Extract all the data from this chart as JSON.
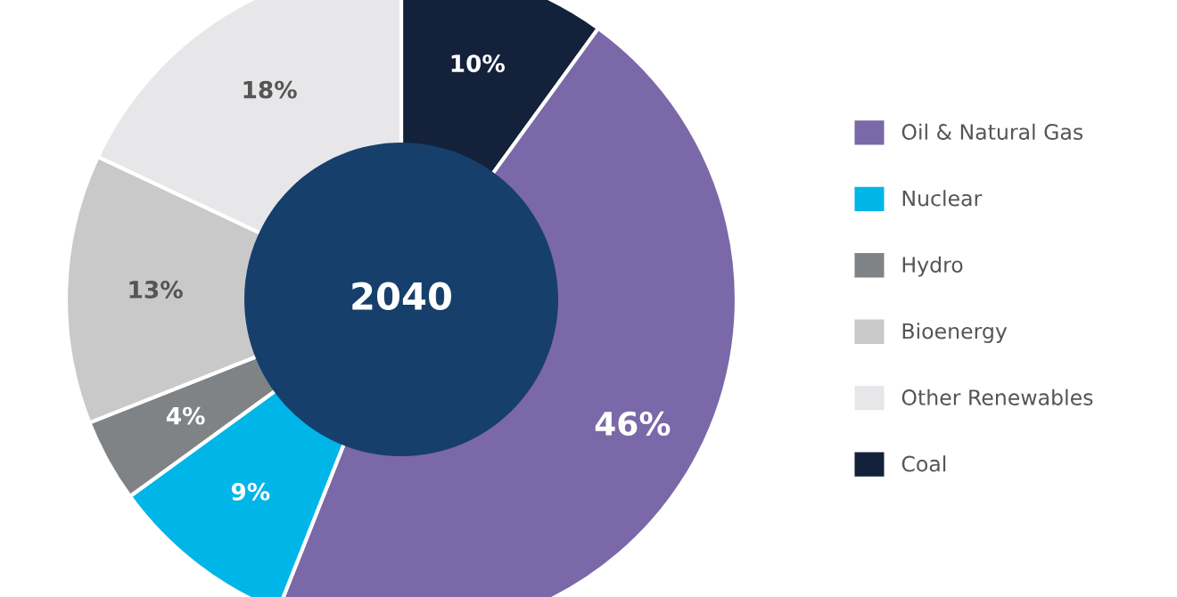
{
  "chart_data": {
    "type": "donut",
    "title": "2040",
    "categories": [
      "Coal",
      "Oil & Natural Gas",
      "Nuclear",
      "Hydro",
      "Bioenergy",
      "Other Renewables"
    ],
    "values": [
      10,
      46,
      9,
      4,
      13,
      18
    ],
    "colors": [
      "#14213a",
      "#7a68a8",
      "#00b5e8",
      "#808386",
      "#c9c9c9",
      "#e7e7e9"
    ],
    "value_labels": [
      "10%",
      "46%",
      "9%",
      "4%",
      "13%",
      "18%"
    ],
    "legend": "right"
  }
}
